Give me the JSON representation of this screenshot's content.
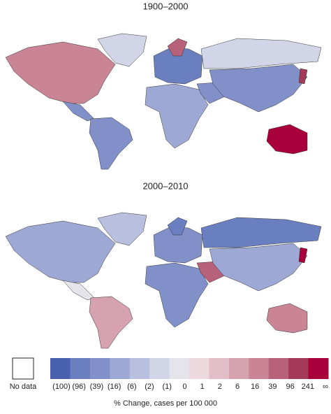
{
  "maps": [
    {
      "title": "1900–2000"
    },
    {
      "title": "2000–2010"
    }
  ],
  "legend": {
    "no_data": "No data",
    "colors": [
      "#4a61b0",
      "#6a7fc0",
      "#8190c8",
      "#9ea8d4",
      "#b9bfdf",
      "#d2d5e8",
      "#e4e4ea",
      "#ecd9de",
      "#e2bfc8",
      "#d6a2b0",
      "#c98495",
      "#b8617a",
      "#a43a5a",
      "#a8003a"
    ],
    "labels": [
      "(100)",
      "(96)",
      "(39)",
      "(16)",
      "(6)",
      "(2)",
      "(1)",
      "0",
      "1",
      "2",
      "6",
      "16",
      "39",
      "96",
      "241",
      "∞"
    ],
    "caption": "% Change, cases per 100 000"
  }
}
